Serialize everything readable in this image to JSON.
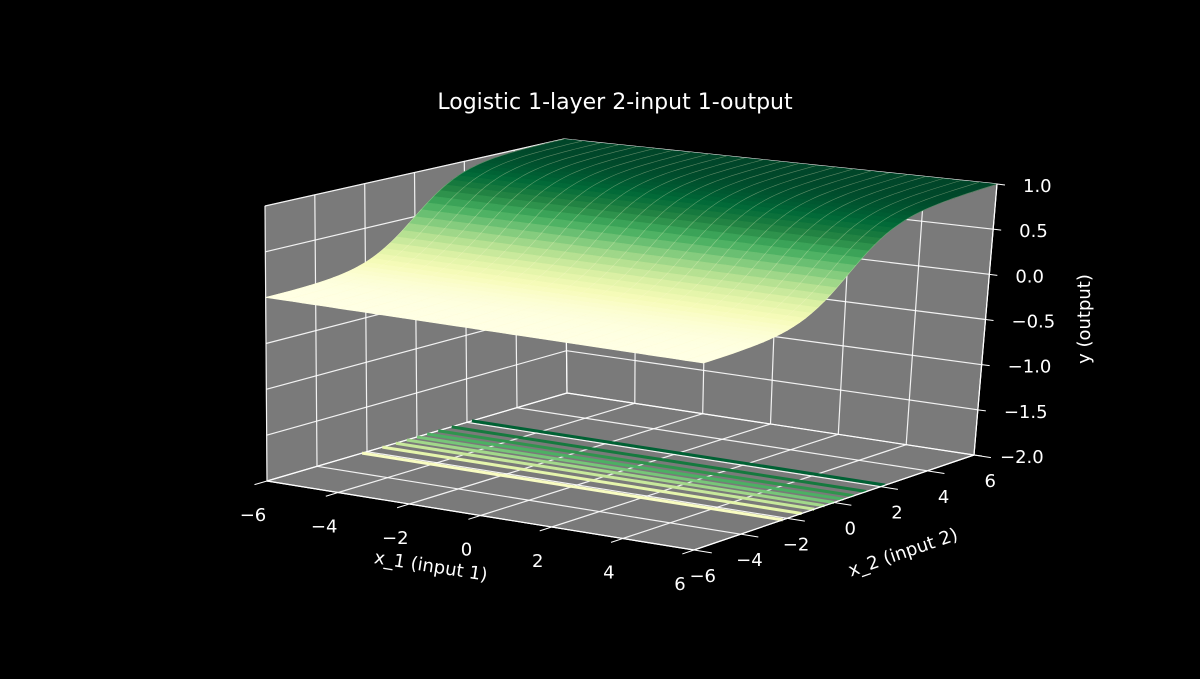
{
  "chart_data": {
    "type": "surface3d",
    "title": "Logistic 1-layer 2-input 1-output",
    "xlabel": "x_1 (input 1)",
    "ylabel": "x_2 (input 2)",
    "zlabel": "y (output)",
    "xlim": [
      -6,
      6
    ],
    "ylim": [
      -6,
      6
    ],
    "zlim": [
      -2.0,
      1.0
    ],
    "xticks": [
      -6,
      -4,
      -2,
      0,
      2,
      4,
      6
    ],
    "yticks": [
      -6,
      -4,
      -2,
      0,
      2,
      4,
      6
    ],
    "zticks": [
      -2.0,
      -1.5,
      -1.0,
      -0.5,
      0.0,
      0.5,
      1.0
    ],
    "xtick_labels": [
      "−6",
      "−4",
      "−2",
      "0",
      "2",
      "4",
      "6"
    ],
    "ytick_labels": [
      "−6",
      "−4",
      "−2",
      "0",
      "2",
      "4",
      "6"
    ],
    "ztick_labels": [
      "−2.0",
      "−1.5",
      "−1.0",
      "−0.5",
      "0.0",
      "0.5",
      "1.0"
    ],
    "function": "y = 1 / (1 + exp(-x_2))",
    "surface": {
      "x": [
        -6,
        -5,
        -4,
        -3,
        -2,
        -1,
        0,
        1,
        2,
        3,
        4,
        5,
        6
      ],
      "y": [
        -6,
        -5,
        -4,
        -3,
        -2,
        -1,
        0,
        1,
        2,
        3,
        4,
        5,
        6
      ],
      "z_row_profile": [
        0.002,
        0.007,
        0.018,
        0.047,
        0.119,
        0.269,
        0.5,
        0.731,
        0.881,
        0.953,
        0.982,
        0.993,
        0.998
      ],
      "colormap": "YlGn"
    },
    "contours": {
      "offset_z": -2.0,
      "levels": [
        0.1,
        0.2,
        0.3,
        0.4,
        0.5,
        0.6,
        0.7,
        0.8,
        0.9
      ]
    },
    "colors": {
      "background": "#000000",
      "pane": "#7a7a7a",
      "grid": "#ffffff",
      "text": "#ffffff"
    }
  }
}
